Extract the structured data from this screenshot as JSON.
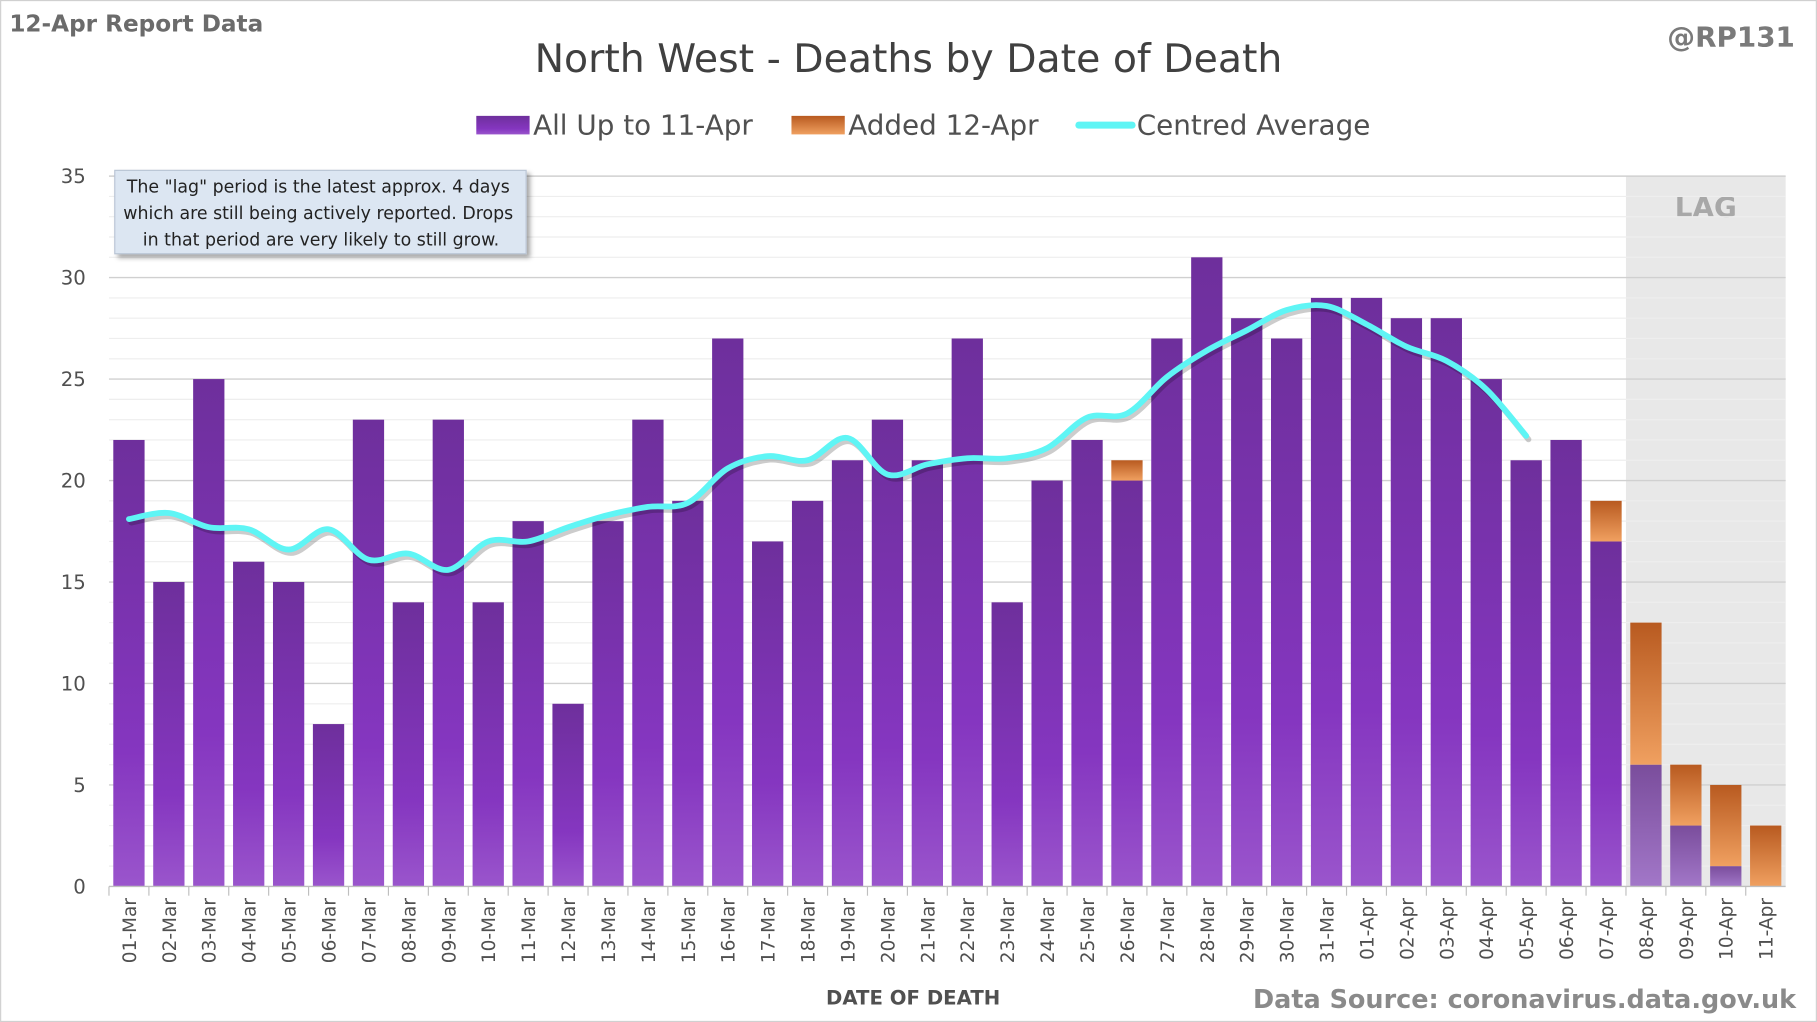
{
  "header": {
    "report_label": "12-Apr Report Data",
    "handle": "@RP131",
    "source": "Data Source: coronavirus.data.gov.uk"
  },
  "annotation": {
    "lines": [
      "The \"lag\" period is the latest approx. 4 days",
      "which are still being actively reported.  Drops",
      "in that period are very likely to still grow."
    ],
    "lag_label": "LAG"
  },
  "colors": {
    "base": "#7a34b0",
    "added": "#d0702a",
    "average": "#5ff5f5",
    "lag_shade": "#e8e8e8"
  },
  "chart_data": {
    "type": "bar",
    "stacked": true,
    "title": "North West - Deaths by Date of Death",
    "xlabel": "DATE OF DEATH",
    "ylabel": "",
    "ylim": [
      0,
      35
    ],
    "yticks": [
      0,
      5,
      10,
      15,
      20,
      25,
      30,
      35
    ],
    "grid": true,
    "legend_position": "top",
    "categories": [
      "01-Mar",
      "02-Mar",
      "03-Mar",
      "04-Mar",
      "05-Mar",
      "06-Mar",
      "07-Mar",
      "08-Mar",
      "09-Mar",
      "10-Mar",
      "11-Mar",
      "12-Mar",
      "13-Mar",
      "14-Mar",
      "15-Mar",
      "16-Mar",
      "17-Mar",
      "18-Mar",
      "19-Mar",
      "20-Mar",
      "21-Mar",
      "22-Mar",
      "23-Mar",
      "24-Mar",
      "25-Mar",
      "26-Mar",
      "27-Mar",
      "28-Mar",
      "29-Mar",
      "30-Mar",
      "31-Mar",
      "01-Apr",
      "02-Apr",
      "03-Apr",
      "04-Apr",
      "05-Apr",
      "06-Apr",
      "07-Apr",
      "08-Apr",
      "09-Apr",
      "10-Apr",
      "11-Apr"
    ],
    "lag_categories": [
      "08-Apr",
      "09-Apr",
      "10-Apr",
      "11-Apr"
    ],
    "series": [
      {
        "name": "All Up to 11-Apr",
        "kind": "bar",
        "values": [
          22,
          15,
          25,
          16,
          15,
          8,
          23,
          14,
          23,
          14,
          18,
          9,
          18,
          23,
          19,
          27,
          17,
          19,
          21,
          23,
          21,
          27,
          14,
          20,
          22,
          20,
          27,
          31,
          28,
          27,
          29,
          29,
          28,
          28,
          25,
          21,
          22,
          17,
          6,
          3,
          1,
          0
        ]
      },
      {
        "name": "Added 12-Apr",
        "kind": "bar",
        "values": [
          0,
          0,
          0,
          0,
          0,
          0,
          0,
          0,
          0,
          0,
          0,
          0,
          0,
          0,
          0,
          0,
          0,
          0,
          0,
          0,
          0,
          0,
          0,
          0,
          0,
          1,
          0,
          0,
          0,
          0,
          0,
          0,
          0,
          0,
          0,
          0,
          0,
          2,
          7,
          3,
          4,
          3
        ]
      },
      {
        "name": "Centred Average",
        "kind": "line",
        "values": [
          18.1,
          18.4,
          17.7,
          17.6,
          16.6,
          17.6,
          16.1,
          16.4,
          15.6,
          17.0,
          17.0,
          17.7,
          18.3,
          18.7,
          18.9,
          20.6,
          21.2,
          21.0,
          22.1,
          20.3,
          20.8,
          21.1,
          21.1,
          21.6,
          23.1,
          23.3,
          25.1,
          26.4,
          27.4,
          28.4,
          28.6,
          27.7,
          26.6,
          25.9,
          24.5,
          22.2,
          null,
          null,
          null,
          null,
          null,
          null
        ]
      }
    ]
  }
}
